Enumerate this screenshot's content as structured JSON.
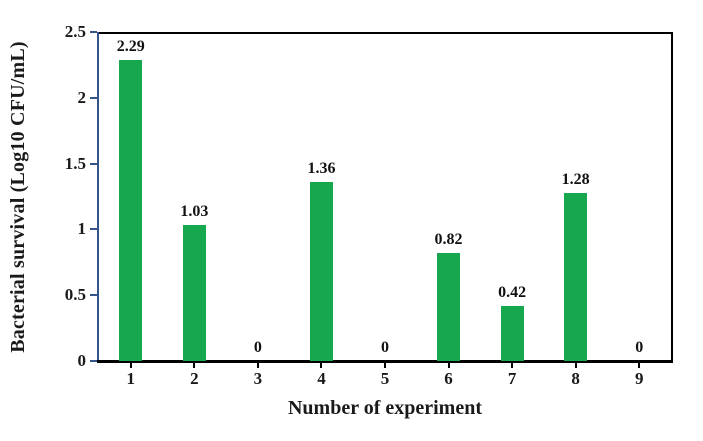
{
  "chart_data": {
    "type": "bar",
    "title": "",
    "categories": [
      "1",
      "2",
      "3",
      "4",
      "5",
      "6",
      "7",
      "8",
      "9"
    ],
    "values": [
      2.29,
      1.03,
      0,
      1.36,
      0,
      0.82,
      0.42,
      1.28,
      0
    ],
    "bar_labels": [
      "2.29",
      "1.03",
      "0",
      "1.36",
      "0",
      "0.82",
      "0.42",
      "1.28",
      "0"
    ],
    "xlabel": "Number of experiment",
    "ylabel": "Bacterial survival (Log10 CFU/mL)",
    "ylim": [
      0,
      2.5
    ],
    "ytick_labels": [
      "2.5",
      "2",
      "1.5",
      "1",
      "0.5",
      "0"
    ],
    "ytick_values": [
      2.5,
      2,
      1.5,
      1,
      0.5,
      0
    ],
    "grid": false,
    "legend_position": "none",
    "bar_color": "#16a74f",
    "y_axis_color": "#35548a",
    "frame_color": "#000000",
    "text_color": "#1a1a1a"
  }
}
